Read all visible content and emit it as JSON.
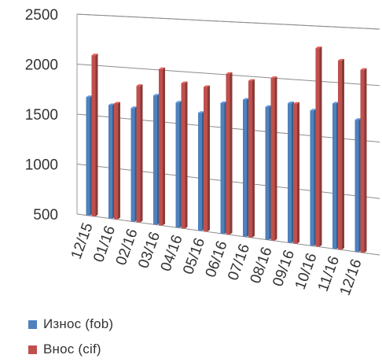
{
  "chart_data": {
    "type": "bar",
    "style": "3d-clustered-column",
    "categories": [
      "12/15",
      "01/16",
      "02/16",
      "03/16",
      "04/16",
      "05/16",
      "06/16",
      "07/16",
      "08/16",
      "09/16",
      "10/16",
      "11/16",
      "12/16"
    ],
    "y_ticks": [
      "500",
      "1000",
      "1500",
      "2000",
      "2500"
    ],
    "ylim": [
      500,
      2500
    ],
    "grid": true,
    "legend_position": "bottom-left",
    "series": [
      {
        "name": "Износ (fob)",
        "color": "#4f81bd",
        "values": [
          1680,
          1620,
          1610,
          1750,
          1700,
          1620,
          1730,
          1780,
          1730,
          1780,
          1730,
          1810,
          1680
        ]
      },
      {
        "name": "Внос (cif)",
        "color": "#c0504d",
        "values": [
          2100,
          1640,
          1830,
          2010,
          1890,
          1870,
          2010,
          1960,
          2000,
          1780,
          2300,
          2200,
          2130
        ]
      }
    ]
  }
}
